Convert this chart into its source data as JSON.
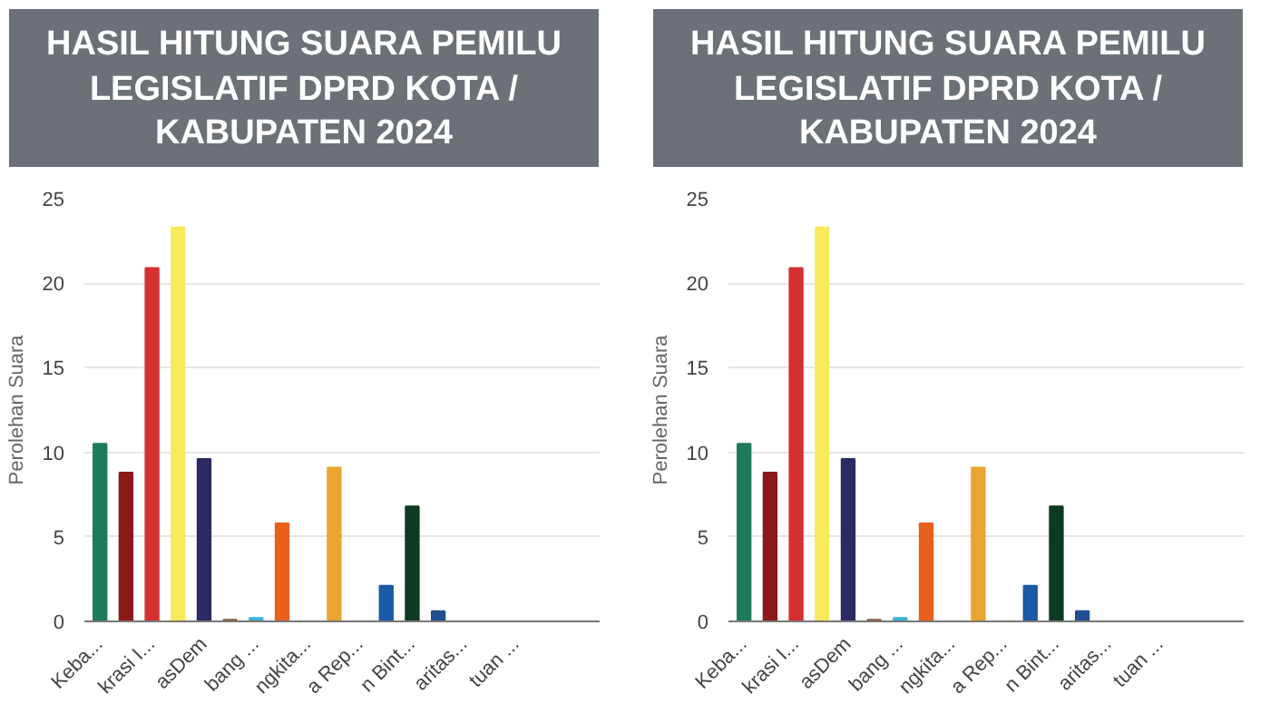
{
  "chart_data": [
    {
      "type": "bar",
      "title": "HASIL HITUNG SUARA PEMILU LEGISLATIF DPRD KOTA / KABUPATEN 2024",
      "ylabel": "Perolehan Suara",
      "categories": [
        "Keba...",
        null,
        "krasi I...",
        null,
        "asDem",
        null,
        "bang ...",
        null,
        "ngkita...",
        null,
        "a Rep...",
        null,
        "n Bint...",
        null,
        "aritas...",
        null,
        "tuan ...",
        null
      ],
      "values": [
        10.5,
        8.8,
        20.9,
        23.3,
        9.6,
        0.1,
        0.2,
        5.8,
        0,
        9.1,
        0,
        2.1,
        6.8,
        0.6,
        0,
        0,
        0,
        0
      ],
      "colors": [
        "#1e7b5a",
        "#8b1a1a",
        "#d62f32",
        "#f7ea5b",
        "#2b2a63",
        "#8a5a3a",
        "#3ab0d9",
        "#e8601c",
        "#999999",
        "#e9a431",
        "#999999",
        "#1a5aa6",
        "#0d3b22",
        "#1f4f8f",
        "#999999",
        "#999999",
        "#999999",
        "#999999"
      ],
      "ylim": [
        0,
        25
      ],
      "yticks": [
        0,
        5,
        10,
        15,
        20,
        25
      ],
      "grid": "y"
    },
    {
      "type": "bar",
      "title": "HASIL HITUNG SUARA PEMILU LEGISLATIF DPRD KOTA / KABUPATEN 2024",
      "ylabel": "Perolehan Suara",
      "categories": [
        "Keba...",
        null,
        "krasi I...",
        null,
        "asDem",
        null,
        "bang ...",
        null,
        "ngkita...",
        null,
        "a Rep...",
        null,
        "n Bint...",
        null,
        "aritas...",
        null,
        "tuan ...",
        null
      ],
      "values": [
        10.5,
        8.8,
        20.9,
        23.3,
        9.6,
        0.1,
        0.2,
        5.8,
        0,
        9.1,
        0,
        2.1,
        6.8,
        0.6,
        0,
        0,
        0,
        0
      ],
      "colors": [
        "#1e7b5a",
        "#8b1a1a",
        "#d62f32",
        "#f7ea5b",
        "#2b2a63",
        "#8a5a3a",
        "#3ab0d9",
        "#e8601c",
        "#999999",
        "#e9a431",
        "#999999",
        "#1a5aa6",
        "#0d3b22",
        "#1f4f8f",
        "#999999",
        "#999999",
        "#999999",
        "#999999"
      ],
      "ylim": [
        0,
        25
      ],
      "yticks": [
        0,
        5,
        10,
        15,
        20,
        25
      ],
      "grid": "y"
    }
  ]
}
